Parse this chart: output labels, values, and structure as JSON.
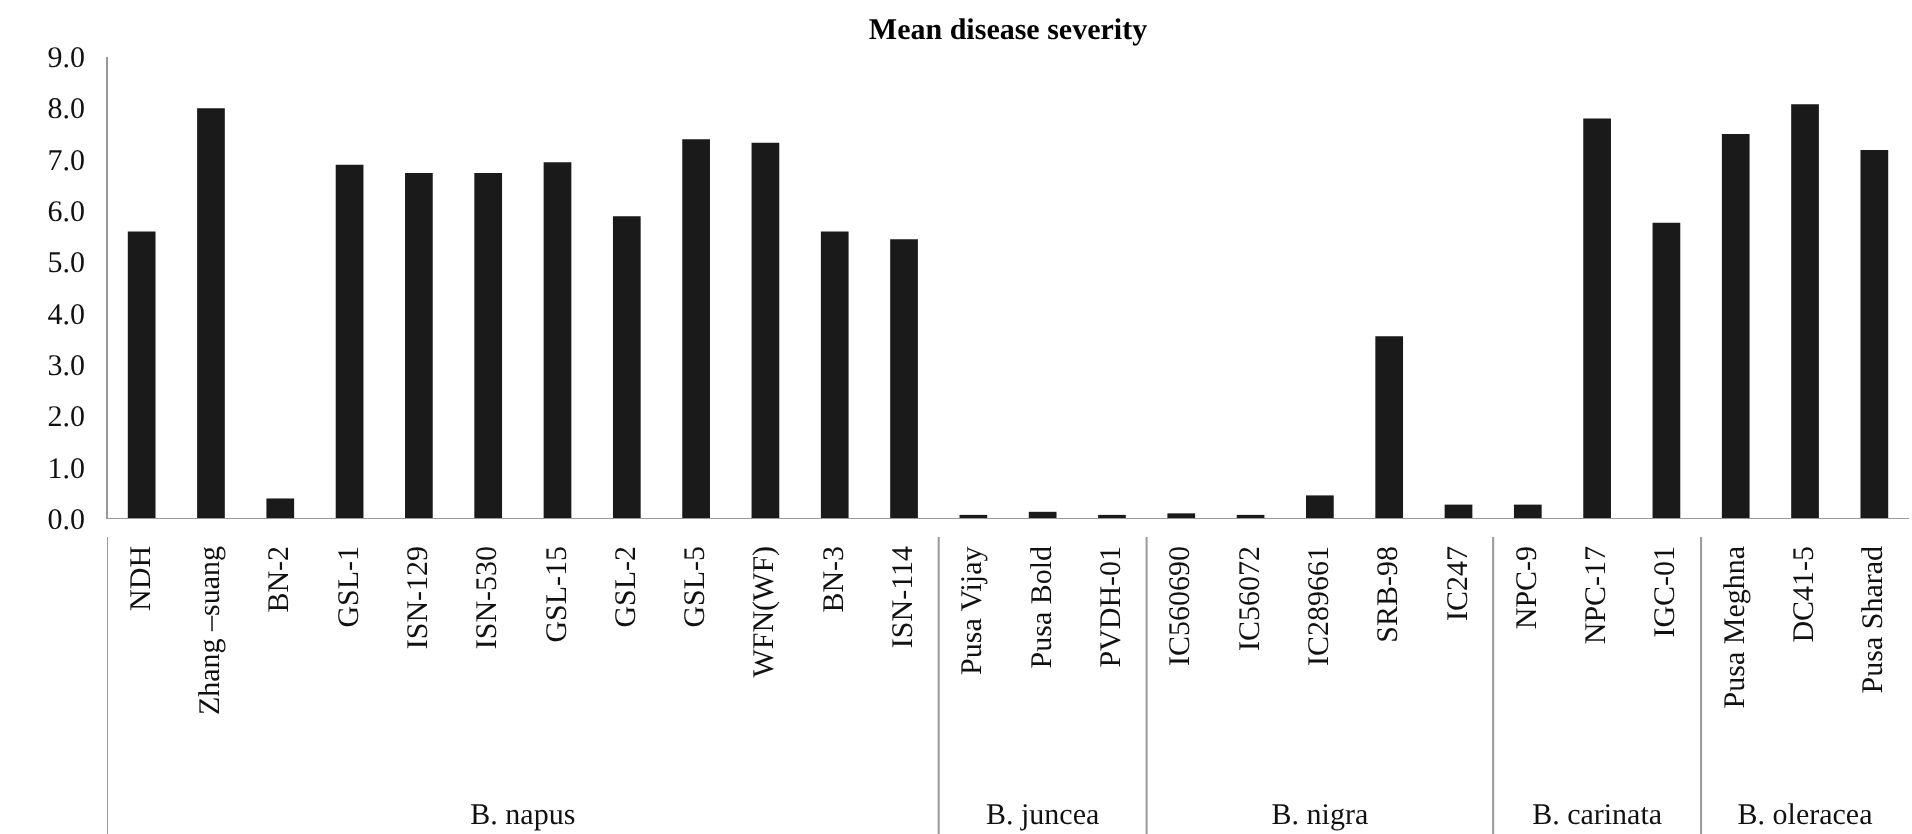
{
  "chart_data": {
    "type": "bar",
    "title": "Mean disease severity",
    "categories": [
      "NDH",
      "Zhang –suang",
      "BN-2",
      "GSL-1",
      "ISN-129",
      "ISN-530",
      "GSL-15",
      "GSL-2",
      "GSL-5",
      "WFN(WF)",
      "BN-3",
      "ISN-114",
      "Pusa Vijay",
      "Pusa Bold",
      "PVDH-01",
      "IC560690",
      "IC56072",
      "IC289661",
      "SRB-98",
      "IC247",
      "NPC-9",
      "NPC-17",
      "IGC-01",
      "Pusa Meghna",
      "DC41-5",
      "Pusa Sharad"
    ],
    "values": [
      5.6,
      8.0,
      0.4,
      6.9,
      6.74,
      6.74,
      6.95,
      5.9,
      7.4,
      7.33,
      5.6,
      5.45,
      0.08,
      0.14,
      0.08,
      0.11,
      0.08,
      0.46,
      3.56,
      0.28,
      0.28,
      7.8,
      5.77,
      7.5,
      8.08,
      7.19
    ],
    "color": "#1a1a1a",
    "ylim": [
      0,
      9
    ],
    "yticks": [
      {
        "value": 0,
        "label": "0.0"
      },
      {
        "value": 1,
        "label": "1.0"
      },
      {
        "value": 2,
        "label": "2.0"
      },
      {
        "value": 3,
        "label": "3.0"
      },
      {
        "value": 4,
        "label": "4.0"
      },
      {
        "value": 5,
        "label": "5.0"
      },
      {
        "value": 6,
        "label": "6.0"
      },
      {
        "value": 7,
        "label": "7.0"
      },
      {
        "value": 8,
        "label": "8.0"
      },
      {
        "value": 9,
        "label": "9.0"
      }
    ],
    "grid": false,
    "annotations": [
      "B. napus",
      "B. juncea",
      "B. nigra",
      "B. carinata",
      "B. oleracea"
    ]
  }
}
